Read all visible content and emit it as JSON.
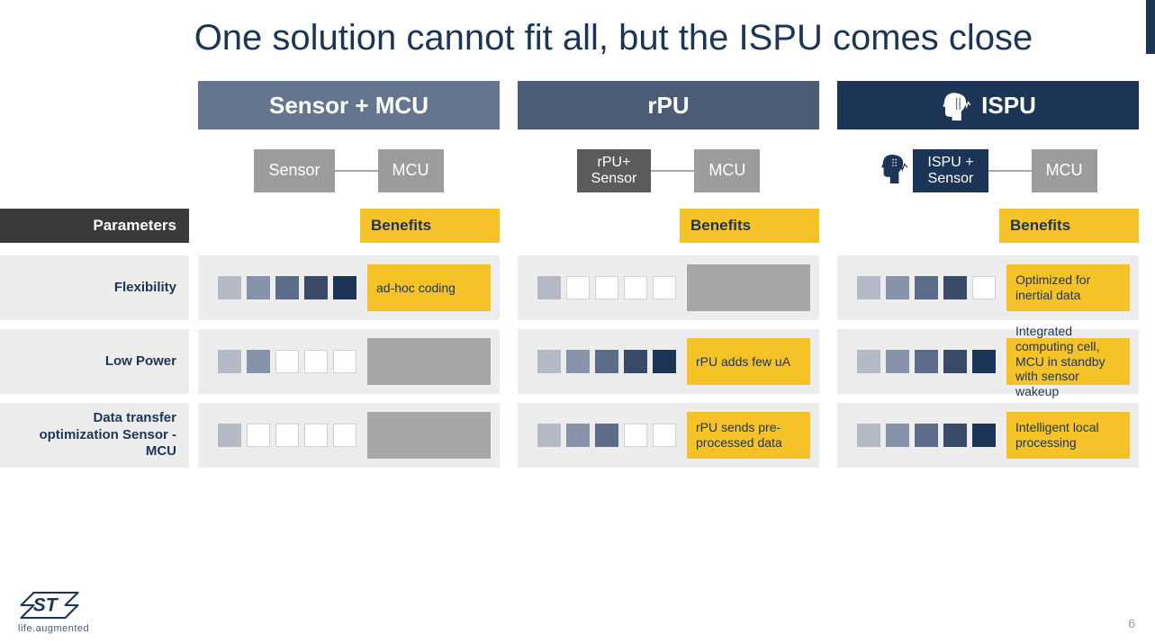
{
  "title": "One solution cannot fit all, but the ISPU comes close",
  "page_number": "6",
  "footer_tagline": "life.augmented",
  "palette": {
    "rating_levels": [
      "#b4bac6",
      "#8793a8",
      "#5d6c88",
      "#384a67",
      "#1c3557"
    ],
    "rating_empty": "#ffffff",
    "yellow": "#f5c228",
    "grey_fill": "#a7a7a7",
    "row_bg": "#ededed",
    "navy": "#1c3557"
  },
  "columns": [
    {
      "key": "sensor_mcu",
      "title": "Sensor + MCU",
      "header_color": "#64758f",
      "arch": [
        {
          "label": "Sensor",
          "bg": "#9c9c9c"
        },
        {
          "label": "MCU",
          "bg": "#9c9c9c"
        }
      ]
    },
    {
      "key": "rpu",
      "title": "rPU",
      "header_color": "#4a5c76",
      "arch": [
        {
          "label": "rPU+\nSensor",
          "bg": "#5b5b5b"
        },
        {
          "label": "MCU",
          "bg": "#9c9c9c"
        }
      ]
    },
    {
      "key": "ispu",
      "title": "ISPU",
      "header_color": "#1c3557",
      "has_icon": true,
      "arch": [
        {
          "label": "ISPU +\nSensor",
          "bg": "#1c3557",
          "icon": true
        },
        {
          "label": "MCU",
          "bg": "#9c9c9c"
        }
      ]
    }
  ],
  "labels": {
    "parameters": "Parameters",
    "benefits": "Benefits"
  },
  "rows": [
    {
      "name": "Flexibility",
      "cells": [
        {
          "rating": 5,
          "benefit": "ad-hoc coding",
          "benefit_style": "yellow"
        },
        {
          "rating": 1,
          "benefit": "",
          "benefit_style": "grey"
        },
        {
          "rating": 4,
          "benefit": "Optimized for inertial data",
          "benefit_style": "yellow"
        }
      ]
    },
    {
      "name": "Low Power",
      "cells": [
        {
          "rating": 2,
          "benefit": "",
          "benefit_style": "grey"
        },
        {
          "rating": 5,
          "benefit": "rPU adds few uA",
          "benefit_style": "yellow"
        },
        {
          "rating": 5,
          "benefit": "Integrated computing cell, MCU in standby with sensor wakeup",
          "benefit_style": "yellow"
        }
      ]
    },
    {
      "name": "Data transfer optimization Sensor - MCU",
      "cells": [
        {
          "rating": 1,
          "benefit": "",
          "benefit_style": "grey"
        },
        {
          "rating": 3,
          "benefit": "rPU sends pre-processed data",
          "benefit_style": "yellow"
        },
        {
          "rating": 5,
          "benefit": "Intelligent local processing",
          "benefit_style": "yellow"
        }
      ]
    }
  ]
}
